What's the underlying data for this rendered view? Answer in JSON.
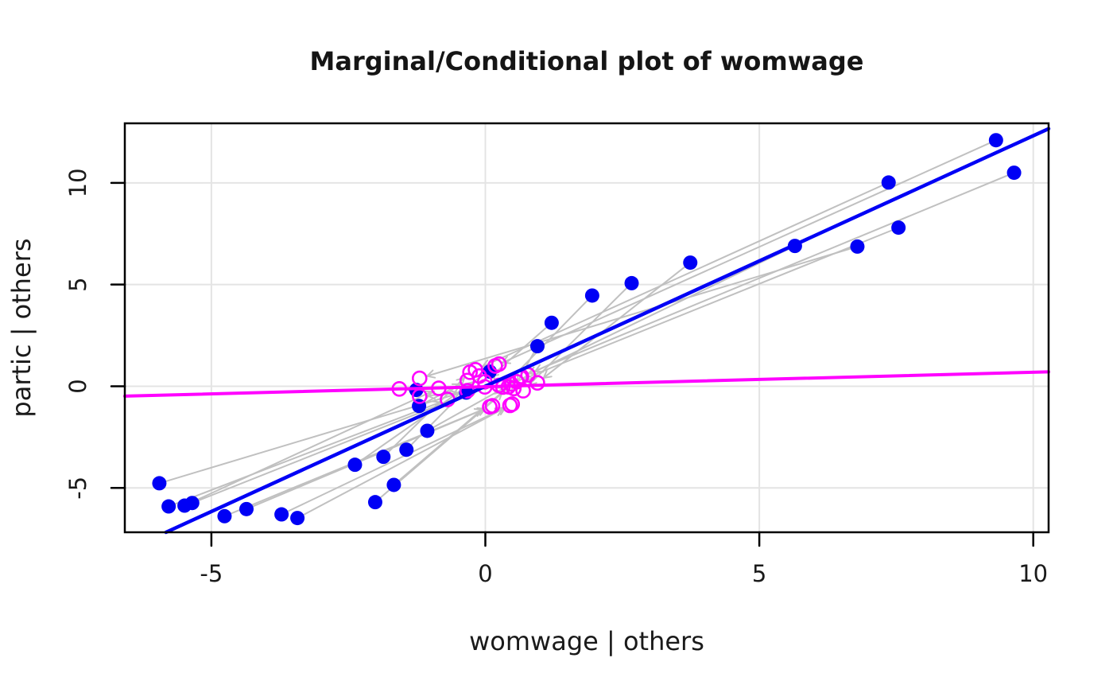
{
  "chart_data": {
    "type": "scatter",
    "title": "Marginal/Conditional plot of womwage",
    "xlabel": "womwage | others",
    "ylabel": "partic | others",
    "xlim": [
      -6.58,
      10.28
    ],
    "ylim": [
      -7.18,
      12.93
    ],
    "xticks": [
      -5,
      0,
      5,
      10
    ],
    "yticks": [
      -5,
      0,
      5,
      10
    ],
    "grid": true,
    "legend_position": "none",
    "fit_lines": [
      {
        "name": "conditional-fit",
        "slope": 1.232,
        "intercept": 0.0,
        "color": "#0000f5"
      },
      {
        "name": "marginal-fit",
        "slope": 0.071,
        "intercept": -0.02,
        "color": "#ff00ff"
      }
    ],
    "series": [
      {
        "name": "conditional points",
        "marker": "filled-circle",
        "color": "#0000f5",
        "radius": 9
      },
      {
        "name": "marginal points",
        "marker": "open-circle",
        "color": "#ff00ff",
        "radius": 8.5
      }
    ],
    "connector": {
      "color": "#c0c0c0",
      "style": "arrow-to-marginal"
    },
    "observations": [
      {
        "cond": [
          -5.95,
          -4.77
        ],
        "marg": [
          -0.33,
          -0.22
        ]
      },
      {
        "cond": [
          -5.78,
          -5.91
        ],
        "marg": [
          -0.69,
          -0.65
        ]
      },
      {
        "cond": [
          -5.49,
          -5.87
        ],
        "marg": [
          -0.85,
          -0.1
        ]
      },
      {
        "cond": [
          -5.35,
          -5.74
        ],
        "marg": [
          -0.01,
          -0.03
        ]
      },
      {
        "cond": [
          -4.76,
          -6.39
        ],
        "marg": [
          0.08,
          -1.01
        ]
      },
      {
        "cond": [
          -4.36,
          -6.04
        ],
        "marg": [
          0.13,
          -0.96
        ]
      },
      {
        "cond": [
          -3.72,
          -6.3
        ],
        "marg": [
          0.45,
          -0.94
        ]
      },
      {
        "cond": [
          -3.43,
          -6.48
        ],
        "marg": [
          0.49,
          -0.88
        ]
      },
      {
        "cond": [
          -2.38,
          -3.86
        ],
        "marg": [
          0.25,
          1.09
        ]
      },
      {
        "cond": [
          -2.01,
          -5.7
        ],
        "marg": [
          0.64,
          0.43
        ]
      },
      {
        "cond": [
          -1.86,
          -3.47
        ],
        "marg": [
          -0.28,
          0.69
        ]
      },
      {
        "cond": [
          -1.67,
          -4.85
        ],
        "marg": [
          0.42,
          -0.03
        ]
      },
      {
        "cond": [
          -1.44,
          -3.12
        ],
        "marg": [
          -0.11,
          0.5
        ]
      },
      {
        "cond": [
          -1.06,
          -2.19
        ],
        "marg": [
          0.47,
          0.11
        ]
      },
      {
        "cond": [
          -1.21,
          -0.97
        ],
        "marg": [
          -0.33,
          0.28
        ]
      },
      {
        "cond": [
          -1.26,
          -0.18
        ],
        "marg": [
          -1.57,
          -0.13
        ]
      },
      {
        "cond": [
          -0.35,
          -0.31
        ],
        "marg": [
          -1.2,
          -0.49
        ]
      },
      {
        "cond": [
          0.08,
          0.72
        ],
        "marg": [
          0.25,
          0.04
        ]
      },
      {
        "cond": [
          0.95,
          1.97
        ],
        "marg": [
          0.52,
          -0.11
        ]
      },
      {
        "cond": [
          1.21,
          3.12
        ],
        "marg": [
          -0.01,
          0.22
        ]
      },
      {
        "cond": [
          1.95,
          4.46
        ],
        "marg": [
          0.32,
          -0.04
        ]
      },
      {
        "cond": [
          2.67,
          5.07
        ],
        "marg": [
          0.69,
          -0.22
        ]
      },
      {
        "cond": [
          3.74,
          6.08
        ],
        "marg": [
          0.95,
          0.17
        ]
      },
      {
        "cond": [
          5.65,
          6.9
        ],
        "marg": [
          0.78,
          0.56
        ]
      },
      {
        "cond": [
          6.79,
          6.87
        ],
        "marg": [
          -1.2,
          0.39
        ]
      },
      {
        "cond": [
          7.36,
          10.02
        ],
        "marg": [
          -0.18,
          0.81
        ]
      },
      {
        "cond": [
          7.54,
          7.8
        ],
        "marg": [
          0.57,
          0.22
        ]
      },
      {
        "cond": [
          9.32,
          12.1
        ],
        "marg": [
          0.18,
          1.0
        ]
      },
      {
        "cond": [
          9.65,
          10.5
        ],
        "marg": [
          0.66,
          0.48
        ]
      }
    ]
  },
  "colors": {
    "background": "#ffffff",
    "grid": "#e4e4e4",
    "border": "#000000",
    "tick": "#000000",
    "connector": "#c0c0c0",
    "conditional": "#0000f5",
    "marginal": "#ff00ff",
    "text": "#1a1a1a"
  }
}
